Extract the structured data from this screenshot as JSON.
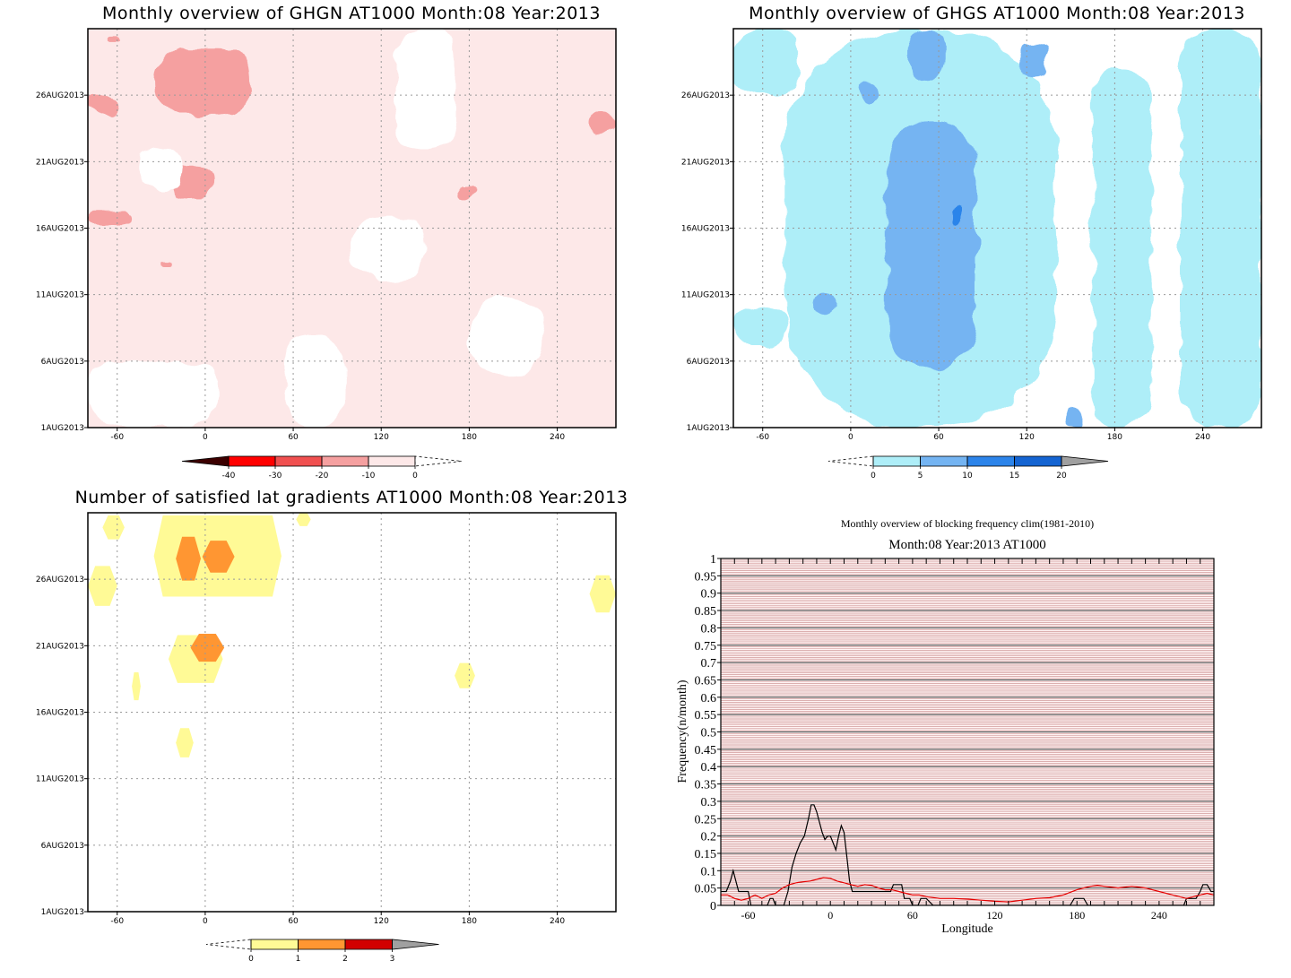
{
  "colors": {
    "ghgn_levels": [
      "#3c0000",
      "#ff0000",
      "#f05050",
      "#f5a0a0",
      "#fde8e8",
      "#ffffff"
    ],
    "ghgs_levels": [
      "#ffffff",
      "#aeeef8",
      "#74b4f2",
      "#2c84ea",
      "#1464d2",
      "#a0a0a0"
    ],
    "grad_levels": [
      "#ffffff",
      "#fffa96",
      "#ff9632",
      "#d20000",
      "#a0a0a0"
    ],
    "clim_line": "#e60000",
    "obs_line": "#000000",
    "bg_hatch": "#c88888"
  },
  "chart_data": [
    {
      "id": "ghgn",
      "type": "heatmap",
      "title": "Monthly overview of GHGN AT1000 Month:08 Year:2013",
      "xticks": [
        "-60",
        "0",
        "60",
        "120",
        "180",
        "240"
      ],
      "xtick_values": [
        -60,
        0,
        60,
        120,
        180,
        240
      ],
      "xlim": [
        -80,
        280
      ],
      "yticks": [
        "1AUG2013",
        "6AUG2013",
        "11AUG2013",
        "16AUG2013",
        "21AUG2013",
        "26AUG2013"
      ],
      "ytick_values": [
        1,
        6,
        11,
        16,
        21,
        26
      ],
      "ylim": [
        1,
        31
      ],
      "colorbar": {
        "labels": [
          "-40",
          "-30",
          "-20",
          "-10",
          "0"
        ],
        "colors": [
          "#3c0000",
          "#ff0000",
          "#f05050",
          "#f5a0a0",
          "#fde8e8"
        ],
        "extend_max_color": "#ffffff"
      },
      "background_level": "0 to -10",
      "patches": [
        {
          "level": "-20 to -10",
          "lon_range": [
            -35,
            30
          ],
          "day_range": [
            24.5,
            29.5
          ]
        },
        {
          "level": "-20 to -10",
          "lon_range": [
            -25,
            5
          ],
          "day_range": [
            18.3,
            20.8
          ]
        },
        {
          "level": "-20 to -10",
          "lon_range": [
            -80,
            -60
          ],
          "day_range": [
            24.6,
            26.1
          ]
        },
        {
          "level": "-20 to -10",
          "lon_range": [
            -78,
            -50
          ],
          "day_range": [
            16.4,
            17.4
          ]
        },
        {
          "level": "-20 to -10",
          "lon_range": [
            -30,
            -23
          ],
          "day_range": [
            13.3,
            13.8
          ]
        },
        {
          "level": "-20 to -10",
          "lon_range": [
            170,
            183
          ],
          "day_range": [
            18.2,
            19.1
          ]
        },
        {
          "level": "-20 to -10",
          "lon_range": [
            262,
            280
          ],
          "day_range": [
            23.1,
            25.0
          ]
        },
        {
          "level": "-20 to -10",
          "lon_range": [
            -67,
            -58
          ],
          "day_range": [
            30.1,
            30.5
          ]
        },
        {
          "level": "0 to 10",
          "lon_range": [
            130,
            170
          ],
          "day_range": [
            22.0,
            31.0
          ]
        },
        {
          "level": "0 to 10",
          "lon_range": [
            100,
            150
          ],
          "day_range": [
            12.0,
            17.0
          ]
        },
        {
          "level": "0 to 10",
          "lon_range": [
            55,
            95
          ],
          "day_range": [
            1.0,
            8.0
          ]
        },
        {
          "level": "0 to 10",
          "lon_range": [
            -80,
            10
          ],
          "day_range": [
            1.0,
            6.0
          ]
        },
        {
          "level": "0 to 10",
          "lon_range": [
            -45,
            -15
          ],
          "day_range": [
            19.0,
            22.0
          ]
        },
        {
          "level": "0 to 10",
          "lon_range": [
            180,
            230
          ],
          "day_range": [
            5.0,
            11.0
          ]
        }
      ]
    },
    {
      "id": "ghgs",
      "type": "heatmap",
      "title": "Monthly overview of GHGS AT1000 Month:08 Year:2013",
      "xticks": [
        "-60",
        "0",
        "60",
        "120",
        "180",
        "240"
      ],
      "xtick_values": [
        -60,
        0,
        60,
        120,
        180,
        240
      ],
      "xlim": [
        -80,
        280
      ],
      "yticks": [
        "1AUG2013",
        "6AUG2013",
        "11AUG2013",
        "16AUG2013",
        "21AUG2013",
        "26AUG2013"
      ],
      "ytick_values": [
        1,
        6,
        11,
        16,
        21,
        26
      ],
      "ylim": [
        1,
        31
      ],
      "colorbar": {
        "labels": [
          "0",
          "5",
          "10",
          "15",
          "20"
        ],
        "colors": [
          "#aeeef8",
          "#74b4f2",
          "#2c84ea",
          "#1464d2"
        ],
        "extend_max_color": "#a0a0a0",
        "extend_min_color": "#ffffff"
      },
      "patches": [
        {
          "level": "0 to 5",
          "lon_range": [
            -45,
            140
          ],
          "day_range": [
            1.0,
            31.0
          ]
        },
        {
          "level": "0 to 5",
          "lon_range": [
            -80,
            -35
          ],
          "day_range": [
            26.0,
            31.0
          ]
        },
        {
          "level": "0 to 5",
          "lon_range": [
            -80,
            -45
          ],
          "day_range": [
            7.0,
            10.0
          ]
        },
        {
          "level": "0 to 5",
          "lon_range": [
            165,
            205
          ],
          "day_range": [
            1.0,
            28.0
          ]
        },
        {
          "level": "0 to 5",
          "lon_range": [
            225,
            280
          ],
          "day_range": [
            1.0,
            31.0
          ]
        },
        {
          "level": "5 to 10",
          "lon_range": [
            25,
            85
          ],
          "day_range": [
            5.5,
            24.0
          ]
        },
        {
          "level": "5 to 10",
          "lon_range": [
            38,
            65
          ],
          "day_range": [
            27.0,
            31.0
          ]
        },
        {
          "level": "5 to 10",
          "lon_range": [
            115,
            135
          ],
          "day_range": [
            27.3,
            30.0
          ]
        },
        {
          "level": "5 to 10",
          "lon_range": [
            5,
            20
          ],
          "day_range": [
            25.3,
            27.0
          ]
        },
        {
          "level": "5 to 10",
          "lon_range": [
            -25,
            -10
          ],
          "day_range": [
            9.5,
            11.0
          ]
        },
        {
          "level": "5 to 10",
          "lon_range": [
            150,
            158
          ],
          "day_range": [
            1.0,
            2.5
          ]
        },
        {
          "level": "10 to 15",
          "lon_range": [
            67,
            74
          ],
          "day_range": [
            16.3,
            17.5
          ]
        }
      ]
    },
    {
      "id": "grad",
      "type": "heatmap",
      "title": "Number of satisfied lat gradients AT1000 Month:08 Year:2013",
      "xticks": [
        "-60",
        "0",
        "60",
        "120",
        "180",
        "240"
      ],
      "xtick_values": [
        -60,
        0,
        60,
        120,
        180,
        240
      ],
      "xlim": [
        -80,
        280
      ],
      "yticks": [
        "1AUG2013",
        "6AUG2013",
        "11AUG2013",
        "16AUG2013",
        "21AUG2013",
        "26AUG2013"
      ],
      "ytick_values": [
        1,
        6,
        11,
        16,
        21,
        26
      ],
      "ylim": [
        1,
        31
      ],
      "colorbar": {
        "labels": [
          "0",
          "1",
          "2",
          "3"
        ],
        "colors": [
          "#fffa96",
          "#ff9632",
          "#d20000"
        ],
        "extend_max_color": "#a0a0a0",
        "extend_min_color": "#ffffff"
      },
      "patches": [
        {
          "level": "1 to 2",
          "lon_range": [
            -35,
            52
          ],
          "day_range": [
            24.7,
            30.8
          ]
        },
        {
          "level": "1 to 2",
          "lon_range": [
            -70,
            -55
          ],
          "day_range": [
            29.0,
            30.8
          ]
        },
        {
          "level": "1 to 2",
          "lon_range": [
            -80,
            -60
          ],
          "day_range": [
            24.0,
            27.0
          ]
        },
        {
          "level": "1 to 2",
          "lon_range": [
            -25,
            12
          ],
          "day_range": [
            18.2,
            21.8
          ]
        },
        {
          "level": "1 to 2",
          "lon_range": [
            -50,
            -44
          ],
          "day_range": [
            16.9,
            19.0
          ]
        },
        {
          "level": "1 to 2",
          "lon_range": [
            -20,
            -8
          ],
          "day_range": [
            12.6,
            14.8
          ]
        },
        {
          "level": "1 to 2",
          "lon_range": [
            170,
            184
          ],
          "day_range": [
            17.8,
            19.7
          ]
        },
        {
          "level": "1 to 2",
          "lon_range": [
            262,
            280
          ],
          "day_range": [
            23.5,
            26.3
          ]
        },
        {
          "level": "1 to 2",
          "lon_range": [
            62,
            72
          ],
          "day_range": [
            30.0,
            31.0
          ]
        },
        {
          "level": "2 to 3",
          "lon_range": [
            -20,
            -3
          ],
          "day_range": [
            25.9,
            29.2
          ]
        },
        {
          "level": "2 to 3",
          "lon_range": [
            -2,
            20
          ],
          "day_range": [
            26.5,
            28.9
          ]
        },
        {
          "level": "2 to 3",
          "lon_range": [
            -10,
            13
          ],
          "day_range": [
            19.8,
            21.9
          ]
        }
      ]
    },
    {
      "id": "freq",
      "type": "line",
      "suptitle": "Monthly overview of blocking frequency clim(1981-2010)",
      "title": "Month:08 Year:2013  AT1000",
      "xlabel": "Longitude",
      "ylabel": "Frequency(n/month)",
      "xticks": [
        "-60",
        "0",
        "60",
        "120",
        "180",
        "240"
      ],
      "xtick_values": [
        -60,
        0,
        60,
        120,
        180,
        240
      ],
      "xlim": [
        -80,
        280
      ],
      "yticks": [
        "0",
        "0.05",
        "0.1",
        "0.15",
        "0.2",
        "0.25",
        "0.3",
        "0.35",
        "0.4",
        "0.45",
        "0.5",
        "0.55",
        "0.6",
        "0.65",
        "0.7",
        "0.75",
        "0.8",
        "0.85",
        "0.9",
        "0.95",
        "1"
      ],
      "ylim": [
        0,
        1
      ],
      "series": [
        {
          "color": "#000000",
          "x": [
            -80,
            -76,
            -73,
            -71,
            -69,
            -67,
            -65,
            -63,
            -60,
            -58,
            -56,
            -54,
            -52,
            -50,
            -48,
            -46,
            -44,
            -42,
            -40,
            -38,
            -36,
            -34,
            -31,
            -28,
            -25,
            -22,
            -19,
            -16,
            -14,
            -12,
            -10,
            -8,
            -6,
            -4,
            -2,
            0,
            2,
            4,
            6,
            8,
            10,
            12,
            14,
            16,
            20,
            30,
            40,
            44,
            46,
            48,
            50,
            52,
            54,
            58,
            60,
            62,
            64,
            66,
            68,
            70,
            75,
            80,
            90,
            100,
            110,
            120,
            130,
            140,
            150,
            160,
            170,
            175,
            178,
            180,
            182,
            185,
            188,
            190,
            200,
            210,
            220,
            230,
            240,
            250,
            255,
            258,
            260,
            262,
            265,
            267,
            270,
            272,
            275,
            278,
            280
          ],
          "y": [
            0.04,
            0.04,
            0.07,
            0.1,
            0.07,
            0.04,
            0.04,
            0.04,
            0.04,
            0.0,
            0.0,
            0.0,
            0.0,
            0.0,
            0.0,
            0.0,
            0.02,
            0.02,
            0.0,
            0.0,
            0.0,
            0.0,
            0.04,
            0.11,
            0.15,
            0.18,
            0.2,
            0.25,
            0.29,
            0.29,
            0.27,
            0.24,
            0.21,
            0.19,
            0.2,
            0.2,
            0.18,
            0.16,
            0.2,
            0.23,
            0.21,
            0.14,
            0.07,
            0.04,
            0.04,
            0.04,
            0.04,
            0.04,
            0.06,
            0.06,
            0.06,
            0.06,
            0.02,
            0.02,
            0.0,
            0.0,
            0.0,
            0.02,
            0.02,
            0.02,
            0.0,
            0.0,
            0.0,
            0.0,
            0.0,
            0.0,
            0.0,
            0.0,
            0.0,
            0.0,
            0.0,
            0.0,
            0.02,
            0.02,
            0.02,
            0.02,
            0.0,
            0.0,
            0.0,
            0.0,
            0.0,
            0.0,
            0.0,
            0.0,
            0.0,
            0.0,
            0.02,
            0.02,
            0.02,
            0.02,
            0.04,
            0.06,
            0.06,
            0.04,
            0.04
          ]
        },
        {
          "color": "#e60000",
          "x": [
            -80,
            -75,
            -70,
            -65,
            -60,
            -55,
            -50,
            -45,
            -40,
            -35,
            -30,
            -25,
            -20,
            -15,
            -10,
            -5,
            0,
            5,
            10,
            15,
            20,
            25,
            30,
            35,
            40,
            45,
            50,
            55,
            60,
            65,
            70,
            80,
            90,
            100,
            110,
            120,
            130,
            140,
            150,
            160,
            170,
            180,
            185,
            190,
            195,
            200,
            210,
            220,
            230,
            240,
            250,
            260,
            270,
            275,
            280
          ],
          "y": [
            0.03,
            0.03,
            0.02,
            0.015,
            0.02,
            0.03,
            0.02,
            0.03,
            0.035,
            0.05,
            0.06,
            0.065,
            0.068,
            0.07,
            0.075,
            0.08,
            0.078,
            0.07,
            0.065,
            0.06,
            0.055,
            0.06,
            0.058,
            0.05,
            0.045,
            0.045,
            0.04,
            0.035,
            0.03,
            0.03,
            0.025,
            0.02,
            0.02,
            0.018,
            0.015,
            0.012,
            0.01,
            0.015,
            0.02,
            0.022,
            0.03,
            0.045,
            0.05,
            0.055,
            0.058,
            0.055,
            0.05,
            0.055,
            0.05,
            0.04,
            0.03,
            0.02,
            0.03,
            0.035,
            0.03
          ]
        }
      ]
    }
  ]
}
